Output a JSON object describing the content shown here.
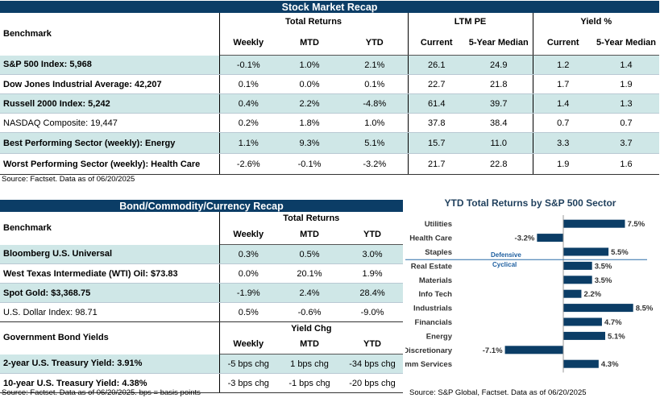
{
  "stock": {
    "title": "Stock Market Recap",
    "benchmark_label": "Benchmark",
    "group_total": "Total Returns",
    "group_pe": "LTM PE",
    "group_yield": "Yield %",
    "cols": {
      "weekly": "Weekly",
      "mtd": "MTD",
      "ytd": "YTD",
      "current": "Current",
      "median": "5-Year Median",
      "ycurrent": "Current",
      "ymedian": "5-Year Median"
    },
    "rows": [
      {
        "name": "S&P 500 Index: 5,968",
        "weekly": "-0.1%",
        "mtd": "1.0%",
        "ytd": "2.1%",
        "pe_cur": "26.1",
        "pe_med": "24.9",
        "y_cur": "1.2",
        "y_med": "1.4"
      },
      {
        "name": "Dow Jones Industrial Average: 42,207",
        "weekly": "0.1%",
        "mtd": "0.0%",
        "ytd": "0.1%",
        "pe_cur": "22.7",
        "pe_med": "21.8",
        "y_cur": "1.7",
        "y_med": "1.9"
      },
      {
        "name": "Russell 2000 Index: 5,242",
        "weekly": "0.4%",
        "mtd": "2.2%",
        "ytd": "-4.8%",
        "pe_cur": "61.4",
        "pe_med": "39.7",
        "y_cur": "1.4",
        "y_med": "1.3"
      },
      {
        "name": "NASDAQ Composite: 19,447",
        "weekly": "0.2%",
        "mtd": "1.8%",
        "ytd": "1.0%",
        "pe_cur": "37.8",
        "pe_med": "38.4",
        "y_cur": "0.7",
        "y_med": "0.7"
      },
      {
        "name": "Best Performing Sector (weekly): Energy",
        "weekly": "1.1%",
        "mtd": "9.3%",
        "ytd": "5.1%",
        "pe_cur": "15.7",
        "pe_med": "11.0",
        "y_cur": "3.3",
        "y_med": "3.7"
      },
      {
        "name": "Worst Performing Sector (weekly): Health Care",
        "weekly": "-2.6%",
        "mtd": "-0.1%",
        "ytd": "-3.2%",
        "pe_cur": "21.7",
        "pe_med": "22.8",
        "y_cur": "1.9",
        "y_med": "1.6"
      }
    ],
    "source": "Source: Factset. Data as of 06/20/2025"
  },
  "bond": {
    "title": "Bond/Commodity/Currency Recap",
    "benchmark_label": "Benchmark",
    "group_total": "Total Returns",
    "cols": {
      "weekly": "Weekly",
      "mtd": "MTD",
      "ytd": "YTD"
    },
    "rows": [
      {
        "name": "Bloomberg U.S. Universal",
        "weekly": "0.3%",
        "mtd": "0.5%",
        "ytd": "3.0%"
      },
      {
        "name": "West Texas Intermediate (WTI) Oil: $73.83",
        "weekly": "0.0%",
        "mtd": "20.1%",
        "ytd": "1.9%"
      },
      {
        "name": "Spot Gold: $3,368.75",
        "weekly": "-1.9%",
        "mtd": "2.4%",
        "ytd": "28.4%"
      },
      {
        "name": "U.S. Dollar Index: 98.71",
        "weekly": "0.5%",
        "mtd": "-0.6%",
        "ytd": "-9.0%"
      }
    ],
    "gov_label": "Government Bond Yields",
    "yield_chg": "Yield Chg",
    "gov_rows": [
      {
        "name": "2-year U.S. Treasury Yield: 3.91%",
        "weekly": "-5 bps chg",
        "mtd": "1 bps chg",
        "ytd": "-34 bps chg"
      },
      {
        "name": "10-year U.S. Treasury Yield: 4.38%",
        "weekly": "-3 bps chg",
        "mtd": "-1 bps chg",
        "ytd": "-20 bps chg"
      }
    ],
    "source": "Source: Factset. Data as of 06/20/2025. bps = basis points"
  },
  "chart_source": "Source: S&P Global, Factset. Data as of 06/20/2025",
  "colors": {
    "navy": "#0b3d66",
    "teal_shade": "#cfe7e7"
  },
  "chart_data": {
    "type": "bar",
    "orientation": "horizontal",
    "title": "YTD Total Returns by S&P 500 Sector",
    "categories": [
      "Utilities",
      "Health Care",
      "Staples",
      "Real Estate",
      "Materials",
      "Info Tech",
      "Industrials",
      "Financials",
      "Energy",
      "Discretionary",
      "Comm Services"
    ],
    "values": [
      7.5,
      -3.2,
      5.5,
      3.5,
      3.5,
      2.2,
      8.5,
      4.7,
      5.1,
      -7.1,
      4.3
    ],
    "value_labels": [
      "7.5%",
      "-3.2%",
      "5.5%",
      "3.5%",
      "3.5%",
      "2.2%",
      "8.5%",
      "4.7%",
      "5.1%",
      "-7.1%",
      "4.3%"
    ],
    "xlim": [
      -10,
      10
    ],
    "xticks": [
      "-10%",
      "-5%",
      "0%",
      "5%",
      "10%"
    ],
    "annotations": [
      "Defensive",
      "Cyclical"
    ],
    "bar_color": "#0b3d66"
  }
}
